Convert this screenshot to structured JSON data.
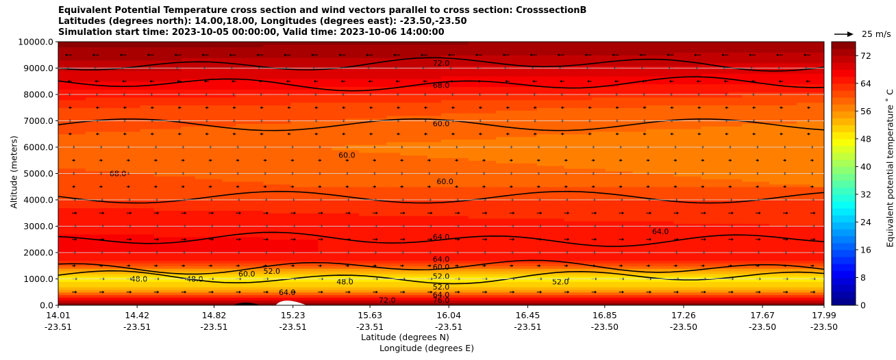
{
  "title": {
    "line1": "Equivalent Potential Temperature cross section and wind vectors parallel to cross section: CrosssectionB",
    "line2": "Latitudes (degrees north): 14.00,18.00, Longitudes (degrees east): -23.50,-23.50",
    "line3": "Simulation start time: 2023-10-05 00:00:00, Valid time: 2023-10-06 14:00:00"
  },
  "axes": {
    "xlabel_line1": "Latitude (degrees N)",
    "xlabel_line2": "Longitude (degrees E)",
    "ylabel": "Altitude (meters)",
    "colorbar_label": "Equivalent potential temperature ˚ C",
    "wind_reference": "25 m/s"
  },
  "colors": {
    "contour_line": "#000000",
    "terrain": "#000000",
    "colormap": "jet"
  },
  "chart_data": {
    "type": "contour cross-section with wind vectors",
    "x_ticks": [
      {
        "lat": "14.01",
        "lon": "-23.51"
      },
      {
        "lat": "14.42",
        "lon": "-23.51"
      },
      {
        "lat": "14.82",
        "lon": "-23.51"
      },
      {
        "lat": "15.23",
        "lon": "-23.51"
      },
      {
        "lat": "15.63",
        "lon": "-23.51"
      },
      {
        "lat": "16.04",
        "lon": "-23.51"
      },
      {
        "lat": "16.45",
        "lon": "-23.51"
      },
      {
        "lat": "16.85",
        "lon": "-23.50"
      },
      {
        "lat": "17.26",
        "lon": "-23.50"
      },
      {
        "lat": "17.67",
        "lon": "-23.50"
      },
      {
        "lat": "17.99",
        "lon": "-23.50"
      }
    ],
    "xlim_lat": [
      14.01,
      17.99
    ],
    "y_ticks": [
      "0.0",
      "1000.0",
      "2000.0",
      "3000.0",
      "4000.0",
      "5000.0",
      "6000.0",
      "7000.0",
      "8000.0",
      "9000.0",
      "10000.0"
    ],
    "ylim": [
      0,
      10000
    ],
    "grid_y": true,
    "colorbar": {
      "min": 0,
      "max": 76,
      "step": 2,
      "ticks": [
        "0",
        "8",
        "16",
        "24",
        "32",
        "40",
        "48",
        "56",
        "64",
        "72"
      ]
    },
    "contour_labels": [
      {
        "text": "72.0",
        "lat": 16.0,
        "alt": 9200
      },
      {
        "text": "68.0",
        "lat": 16.0,
        "alt": 8350
      },
      {
        "text": "60.0",
        "lat": 16.0,
        "alt": 6900
      },
      {
        "text": "60.0",
        "lat": 15.51,
        "alt": 5700
      },
      {
        "text": "60.0",
        "lat": 16.02,
        "alt": 4700
      },
      {
        "text": "68.0",
        "lat": 14.32,
        "alt": 5000
      },
      {
        "text": "64.0",
        "lat": 16.0,
        "alt": 2600
      },
      {
        "text": "64.0",
        "lat": 17.14,
        "alt": 2800
      },
      {
        "text": "64.0",
        "lat": 16.0,
        "alt": 1750
      },
      {
        "text": "60.0",
        "lat": 16.0,
        "alt": 1450
      },
      {
        "text": "52.0",
        "lat": 16.0,
        "alt": 1100
      },
      {
        "text": "52.0",
        "lat": 16.0,
        "alt": 700
      },
      {
        "text": "52.0",
        "lat": 15.12,
        "alt": 1300
      },
      {
        "text": "52.0",
        "lat": 16.62,
        "alt": 900
      },
      {
        "text": "48.0",
        "lat": 14.43,
        "alt": 1000
      },
      {
        "text": "48.0",
        "lat": 14.72,
        "alt": 1000
      },
      {
        "text": "48.0",
        "lat": 15.5,
        "alt": 900
      },
      {
        "text": "60.0",
        "lat": 14.99,
        "alt": 1200
      },
      {
        "text": "64.0",
        "lat": 15.2,
        "alt": 500
      },
      {
        "text": "72.0",
        "lat": 15.72,
        "alt": 200
      },
      {
        "text": "64.0",
        "lat": 16.0,
        "alt": 400
      },
      {
        "text": "76.0",
        "lat": 16.0,
        "alt": 200
      }
    ],
    "theta_e_profile": [
      {
        "alt": 0,
        "value": 76
      },
      {
        "alt": 200,
        "value": 70
      },
      {
        "alt": 450,
        "value": 58
      },
      {
        "alt": 700,
        "value": 52
      },
      {
        "alt": 1000,
        "value": 49
      },
      {
        "alt": 1250,
        "value": 53
      },
      {
        "alt": 1500,
        "value": 60
      },
      {
        "alt": 1800,
        "value": 65
      },
      {
        "alt": 2500,
        "value": 65
      },
      {
        "alt": 3500,
        "value": 63
      },
      {
        "alt": 4500,
        "value": 61
      },
      {
        "alt": 6000,
        "value": 59
      },
      {
        "alt": 7500,
        "value": 62
      },
      {
        "alt": 8500,
        "value": 68
      },
      {
        "alt": 9500,
        "value": 73
      },
      {
        "alt": 10000,
        "value": 75
      }
    ],
    "contour_levels_drawn": [
      52,
      60,
      64,
      68,
      72
    ],
    "wind_reference_ms": 25,
    "wind_vectors": {
      "levels_m": [
        9500,
        9000,
        8500,
        8000,
        7500,
        7000,
        6500,
        6000,
        5500,
        5000,
        4500,
        4000,
        3500,
        3000,
        2500,
        2000,
        1500,
        1000,
        500
      ],
      "speed_ms": [
        8,
        6,
        4,
        3,
        2,
        1,
        1,
        1,
        1,
        2,
        2,
        4,
        5,
        5,
        5,
        4,
        3,
        6,
        5
      ],
      "direction": [
        "left",
        "left",
        "left",
        "left",
        "left",
        "left",
        "left",
        "right",
        "right",
        "right",
        "right",
        "right",
        "right",
        "right",
        "right",
        "right",
        "right",
        "right",
        "right"
      ]
    }
  }
}
